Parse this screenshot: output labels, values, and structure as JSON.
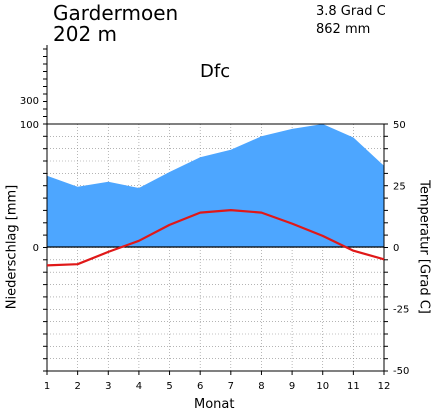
{
  "header": {
    "station": "Gardermoen",
    "elevation": "202 m",
    "annual_temperature": "3.8 Grad C",
    "annual_precipitation": "862 mm",
    "climate_class": "Dfc"
  },
  "chart_data": {
    "type": "line",
    "xlabel": "Monat",
    "ylabel_left": "Niederschlag [mm]",
    "ylabel_right": "Temperatur [Grad C]",
    "categories": [
      "1",
      "2",
      "3",
      "4",
      "5",
      "6",
      "7",
      "8",
      "9",
      "10",
      "11",
      "12"
    ],
    "series": [
      {
        "kind": "area",
        "axis": "left",
        "unit": "mm",
        "color": "#4da6ff",
        "values": [
          58,
          49,
          53,
          48,
          61,
          73,
          79,
          90,
          96,
          100,
          89,
          66
        ]
      },
      {
        "kind": "line",
        "axis": "right",
        "unit": "Grad C",
        "color": "#e01818",
        "values": [
          -7.5,
          -7,
          -2,
          2.5,
          9,
          14,
          15,
          14,
          9.5,
          4.5,
          -1.5,
          -5
        ]
      }
    ],
    "y_left": {
      "range": [
        0,
        300
      ],
      "tick_labels": [
        "0",
        "100",
        "300"
      ]
    },
    "y_right": {
      "range": [
        -50,
        50
      ],
      "tick_labels": [
        "50",
        "25",
        "0",
        "-25",
        "-50"
      ]
    },
    "grid": true
  }
}
